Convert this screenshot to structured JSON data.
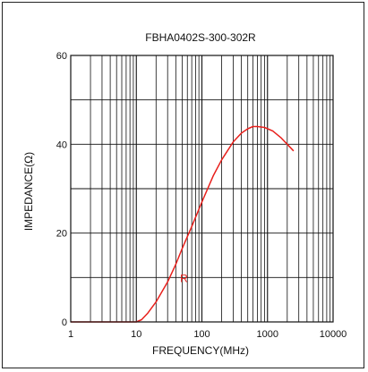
{
  "chart_data": {
    "type": "line",
    "title": "FBHA0402S-300-302R",
    "xlabel": "FREQUENCY(MHz)",
    "ylabel": "IMPEDANCE(Ω)",
    "x_scale": "log",
    "xlim": [
      1,
      10000
    ],
    "ylim": [
      0,
      60
    ],
    "x_ticks": [
      1,
      10,
      100,
      1000,
      10000
    ],
    "x_tick_labels": [
      "1",
      "10",
      "100",
      "1000",
      "10000"
    ],
    "y_ticks": [
      0,
      20,
      40,
      60
    ],
    "y_tick_labels": [
      "0",
      "20",
      "40",
      "60"
    ],
    "grid": true,
    "series": [
      {
        "name": "R",
        "color": "#e8201c",
        "x": [
          1,
          5,
          10,
          12,
          15,
          20,
          30,
          40,
          50,
          70,
          100,
          150,
          200,
          300,
          400,
          500,
          600,
          700,
          900,
          1200,
          1600,
          2000,
          2500
        ],
        "y": [
          0,
          0,
          0,
          0.5,
          2,
          4.5,
          9,
          13,
          16.5,
          21.5,
          27,
          33,
          36.5,
          40.5,
          42.5,
          43.5,
          44,
          44,
          43.8,
          43,
          41.5,
          40,
          38.5
        ]
      }
    ],
    "annotations": [
      {
        "text": "R",
        "x": 50,
        "y": 10
      }
    ]
  }
}
